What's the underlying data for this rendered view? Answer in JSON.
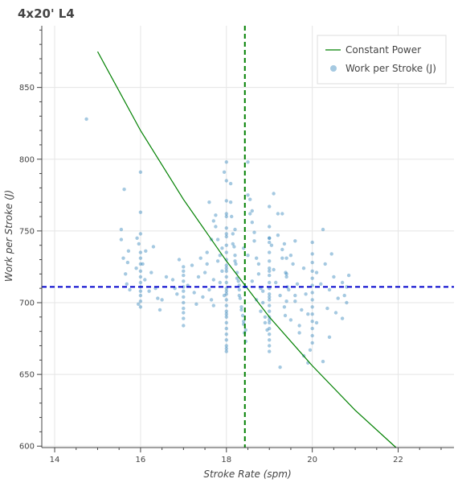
{
  "chart_data": {
    "type": "scatter",
    "title": "4x20' L4",
    "xlabel": "Stroke Rate (spm)",
    "ylabel": "Work per Stroke (J)",
    "xlim": [
      13.7,
      23.3
    ],
    "ylim": [
      599,
      893
    ],
    "x_ticks": [
      14,
      16,
      18,
      20,
      22
    ],
    "y_ticks": [
      600,
      650,
      700,
      750,
      800,
      850
    ],
    "grid": true,
    "legend_position": "top-right",
    "colors": {
      "scatter": "#1f77b4",
      "constant_power": "#008000",
      "vline": "#008000",
      "hline": "#0000cc",
      "grid": "#e5e5e5",
      "axis": "#444444"
    },
    "series": [
      {
        "name": "Constant Power",
        "type": "line",
        "x": [
          15.0,
          16.0,
          17.0,
          18.0,
          19.0,
          20.0,
          21.0,
          21.95
        ],
        "y": [
          875,
          820,
          772,
          729,
          690,
          656,
          625,
          599
        ]
      },
      {
        "name": "Work per Stroke (J)",
        "type": "scatter",
        "points_note": "",
        "x": [
          14.74,
          15.55,
          15.55,
          15.6,
          15.62,
          15.65,
          15.68,
          15.7,
          15.72,
          15.75,
          15.9,
          15.92,
          15.95,
          15.96,
          16.0,
          16.0,
          16.0,
          16.0,
          16.0,
          16.0,
          16.0,
          16.0,
          16.0,
          16.0,
          16.0,
          16.0,
          16.0,
          16.0,
          16.05,
          16.1,
          16.12,
          16.2,
          16.25,
          16.3,
          16.35,
          16.4,
          16.45,
          16.5,
          16.6,
          16.75,
          16.8,
          16.85,
          16.9,
          17.0,
          17.0,
          17.0,
          17.0,
          17.0,
          17.0,
          17.0,
          17.0,
          17.0,
          17.0,
          17.0,
          17.0,
          17.1,
          17.2,
          17.25,
          17.3,
          17.35,
          17.4,
          17.45,
          17.5,
          17.55,
          17.6,
          17.65,
          17.7,
          17.75,
          17.8,
          17.85,
          17.9,
          17.95,
          17.7,
          17.75,
          17.6,
          17.8,
          17.85,
          17.9,
          17.7,
          17.65,
          17.55,
          18.0,
          18.0,
          18.0,
          18.0,
          18.0,
          18.0,
          18.0,
          18.0,
          18.0,
          18.0,
          18.0,
          18.0,
          18.0,
          18.0,
          18.0,
          18.0,
          18.0,
          18.0,
          18.0,
          18.0,
          18.0,
          18.0,
          18.0,
          18.0,
          18.0,
          18.0,
          18.0,
          18.0,
          18.0,
          18.0,
          18.1,
          18.12,
          18.15,
          18.18,
          18.2,
          18.22,
          18.25,
          18.28,
          18.3,
          18.32,
          18.35,
          18.38,
          18.4,
          18.42,
          18.45,
          18.1,
          18.15,
          18.2,
          18.25,
          18.3,
          18.35,
          18.4,
          18.45,
          18.2,
          18.3,
          18.5,
          18.55,
          18.6,
          18.65,
          18.7,
          18.75,
          18.8,
          18.85,
          18.9,
          18.95,
          18.5,
          18.6,
          18.7,
          18.8,
          18.9,
          18.55,
          18.65,
          18.75,
          18.85,
          19.0,
          19.0,
          19.0,
          19.0,
          19.0,
          19.0,
          19.0,
          19.0,
          19.0,
          19.0,
          19.0,
          19.0,
          19.0,
          19.0,
          19.0,
          19.0,
          19.0,
          19.0,
          19.0,
          19.0,
          19.0,
          19.0,
          19.0,
          19.0,
          19.05,
          19.1,
          19.15,
          19.2,
          19.25,
          19.3,
          19.35,
          19.4,
          19.45,
          19.5,
          19.55,
          19.6,
          19.65,
          19.7,
          19.75,
          19.8,
          19.85,
          19.9,
          19.95,
          19.1,
          19.2,
          19.3,
          19.4,
          19.5,
          19.6,
          19.7,
          19.8,
          19.9,
          19.35,
          19.4,
          19.38,
          19.42,
          19.4,
          19.37,
          20.0,
          20.0,
          20.0,
          20.0,
          20.0,
          20.0,
          20.0,
          20.0,
          20.0,
          20.0,
          20.0,
          20.0,
          20.0,
          20.0,
          20.1,
          20.2,
          20.3,
          20.35,
          20.4,
          20.5,
          20.6,
          20.7,
          20.75,
          20.8,
          20.85,
          20.1,
          20.25,
          20.4,
          20.55,
          20.7,
          20.8,
          18.5,
          18.6,
          18.4,
          19.25,
          19.0,
          17.95,
          19.3,
          19.6,
          20.25,
          20.45,
          18.0
        ],
        "y": [
          828,
          751,
          744,
          731,
          779,
          720,
          713,
          728,
          736,
          709,
          724,
          745,
          699,
          741,
          791,
          763,
          748,
          735,
          731,
          727,
          722,
          718,
          714,
          711,
          708,
          705,
          701,
          697,
          727,
          716,
          736,
          708,
          721,
          739,
          710,
          703,
          695,
          702,
          718,
          716,
          710,
          706,
          730,
          722,
          719,
          715,
          711,
          708,
          704,
          700,
          696,
          693,
          689,
          684,
          725,
          712,
          726,
          707,
          699,
          718,
          731,
          704,
          721,
          735,
          709,
          744,
          698,
          753,
          729,
          714,
          738,
          705,
          757,
          761,
          770,
          744,
          733,
          722,
          716,
          702,
          727,
          798,
          785,
          771,
          760,
          752,
          746,
          740,
          735,
          730,
          726,
          722,
          718,
          714,
          710,
          706,
          702,
          698,
          694,
          690,
          686,
          682,
          678,
          674,
          670,
          666,
          762,
          748,
          724,
          708,
          692,
          783,
          760,
          748,
          739,
          733,
          727,
          721,
          715,
          709,
          703,
          697,
          691,
          685,
          679,
          673,
          770,
          741,
          729,
          717,
          705,
          695,
          687,
          681,
          751,
          712,
          798,
          772,
          756,
          743,
          731,
          720,
          710,
          700,
          690,
          681,
          733,
          715,
          702,
          694,
          686,
          762,
          749,
          727,
          708,
          767,
          753,
          742,
          735,
          729,
          724,
          719,
          714,
          710,
          706,
          702,
          698,
          694,
          690,
          686,
          682,
          678,
          674,
          670,
          666,
          745,
          722,
          704,
          688,
          740,
          723,
          714,
          747,
          705,
          731,
          697,
          718,
          709,
          688,
          727,
          701,
          713,
          679,
          695,
          724,
          706,
          692,
          667,
          776,
          762,
          737,
          720,
          733,
          743,
          684,
          663,
          658,
          741,
          731,
          721,
          711,
          701,
          691,
          742,
          734,
          728,
          722,
          717,
          712,
          707,
          702,
          697,
          692,
          687,
          682,
          677,
          672,
          721,
          713,
          727,
          696,
          709,
          718,
          703,
          714,
          705,
          700,
          719,
          686,
          659,
          676,
          693,
          689,
          711,
          775,
          764,
          738,
          655,
          745,
          791,
          762,
          705,
          751,
          734,
          668
        ]
      }
    ],
    "reference_lines": [
      {
        "orientation": "vertical",
        "x": 18.43,
        "style": "dashed"
      },
      {
        "orientation": "horizontal",
        "y": 711,
        "style": "dashed"
      }
    ]
  }
}
